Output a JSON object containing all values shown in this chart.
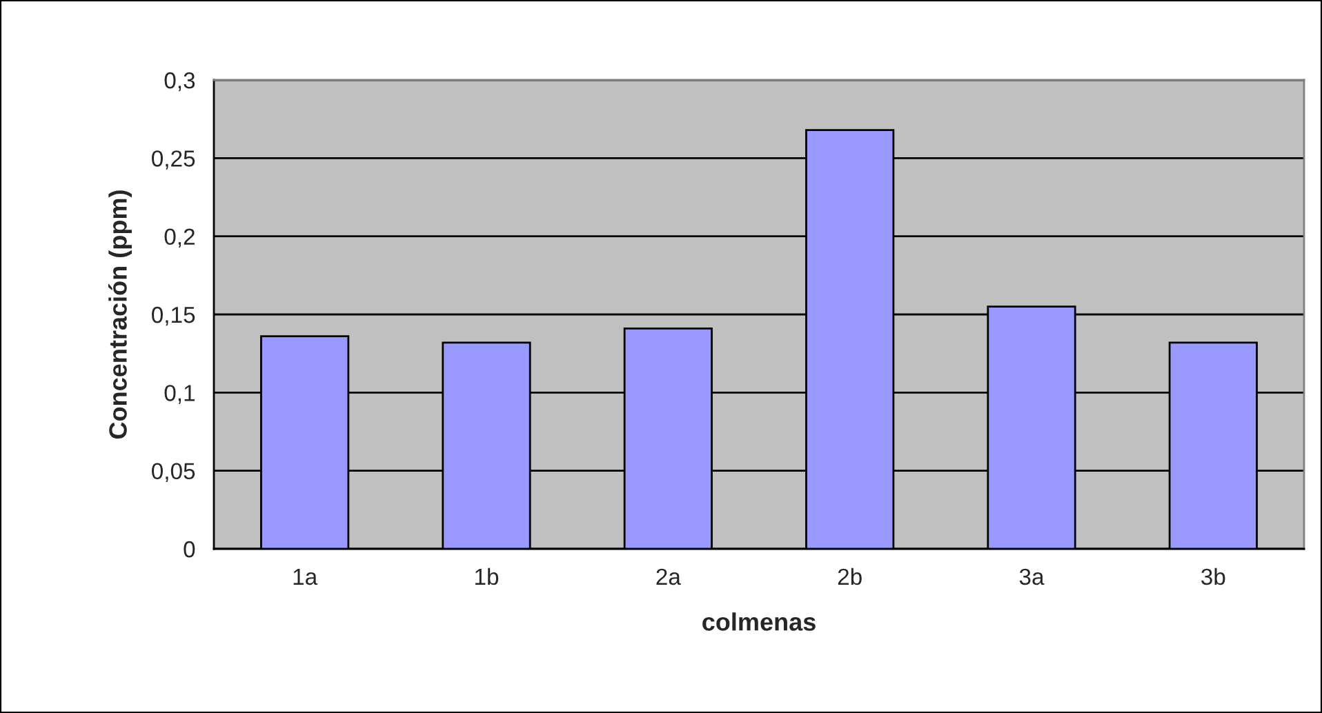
{
  "chart_data": {
    "type": "bar",
    "xlabel": "colmenas",
    "ylabel": "Concentración (ppm)",
    "categories": [
      "1a",
      "1b",
      "2a",
      "2b",
      "3a",
      "3b"
    ],
    "values": [
      0.136,
      0.132,
      0.141,
      0.268,
      0.155,
      0.132
    ],
    "color": "#9999ff",
    "ylim": [
      0,
      0.3
    ],
    "yticks": [
      0,
      {
        "value": 0.05,
        "label": "0,05"
      },
      {
        "value": 0.1,
        "label": "0,1"
      },
      {
        "value": 0.15,
        "label": "0,15"
      },
      {
        "value": 0.2,
        "label": "0,2"
      },
      {
        "value": 0.25,
        "label": "0,25"
      },
      {
        "value": 0.3,
        "label": "0,3"
      }
    ],
    "grid": "y",
    "legend": false
  }
}
